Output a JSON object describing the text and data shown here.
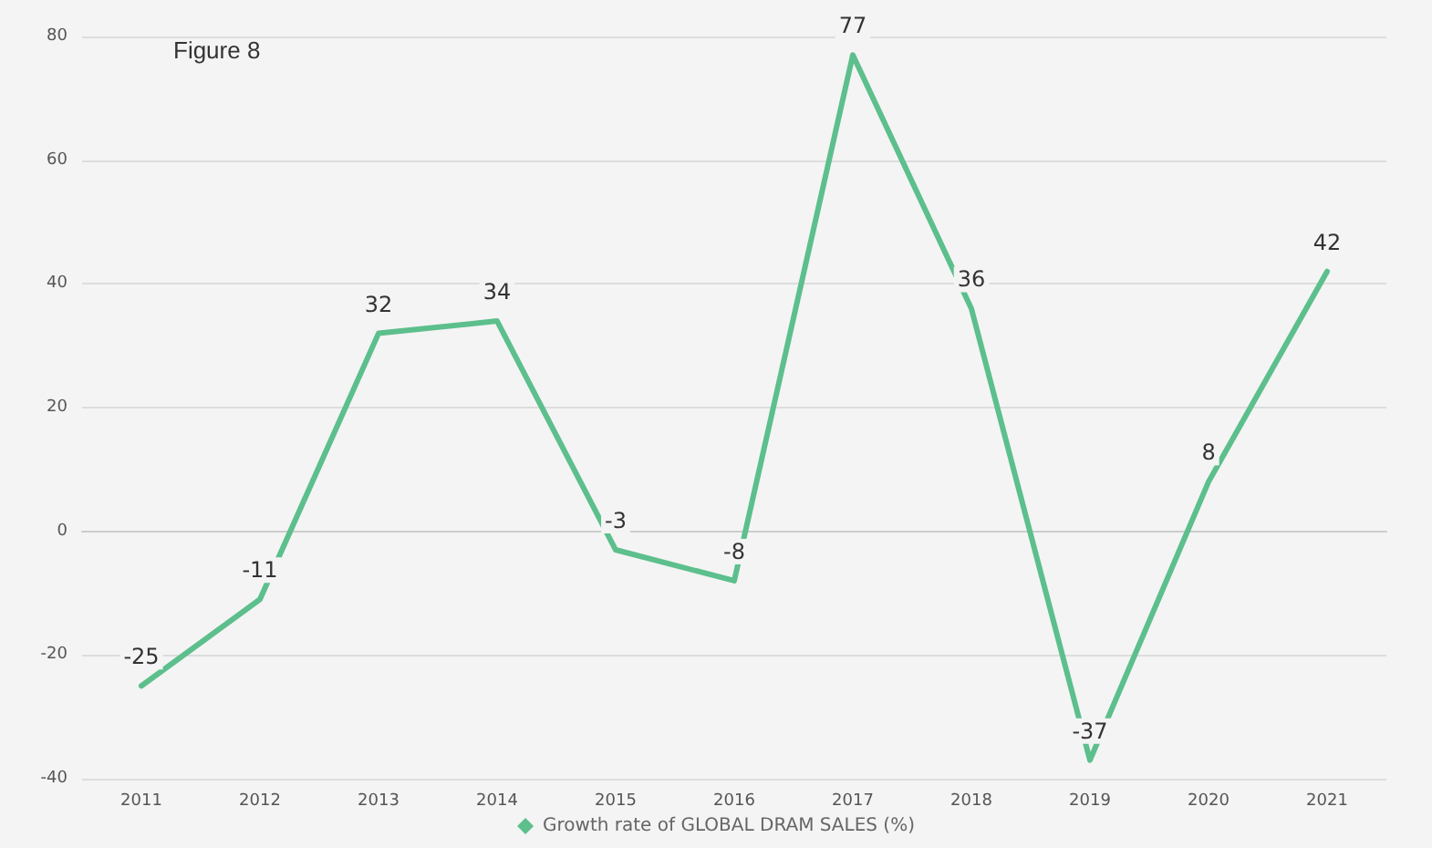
{
  "chart_data": {
    "type": "line",
    "title": "Figure 8",
    "categories": [
      "2011",
      "2012",
      "2013",
      "2014",
      "2015",
      "2016",
      "2017",
      "2018",
      "2019",
      "2020",
      "2021"
    ],
    "series": [
      {
        "name": "Growth rate of GLOBAL DRAM SALES (%)",
        "color": "#5cbf8c",
        "values": [
          -25,
          -11,
          32,
          34,
          -3,
          -8,
          77,
          36,
          -37,
          8,
          42
        ]
      }
    ],
    "ylim": [
      -40,
      80
    ],
    "yticks": [
      -40,
      -20,
      0,
      20,
      40,
      60,
      80
    ],
    "grid": "y",
    "legend": "bottom",
    "data_labels": true,
    "marker": "none",
    "line_style": "solid"
  }
}
